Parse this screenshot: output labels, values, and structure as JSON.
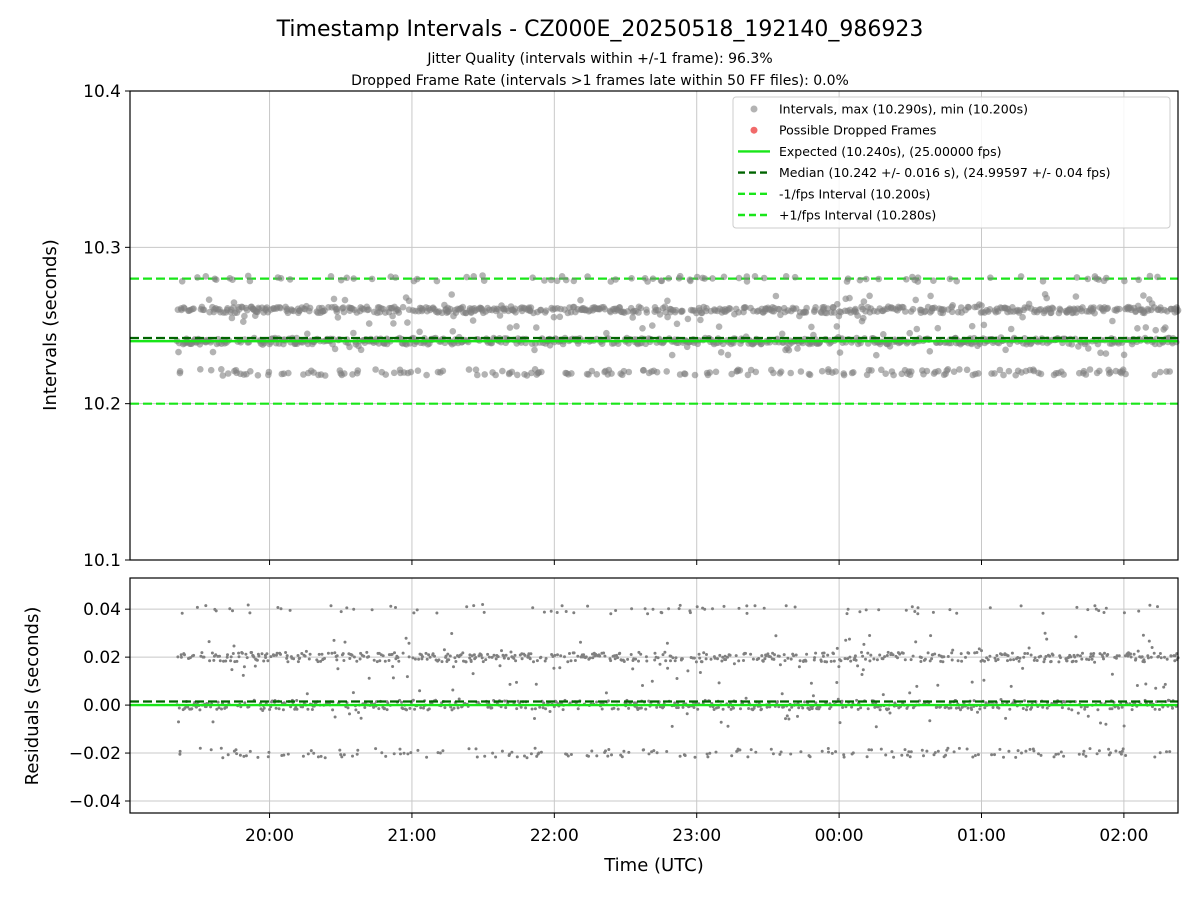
{
  "header": {
    "title": "Timestamp Intervals - CZ000E_20250518_192140_986923",
    "subtitle_1": "Jitter Quality (intervals within +/-1 frame): 96.3%",
    "subtitle_2": "Dropped Frame Rate (intervals >1 frames late within 50 FF files): 0.0%"
  },
  "colors": {
    "points": "#808080",
    "dropped": "#f05a5a",
    "expected": "#19e619",
    "median": "#006400",
    "limits": "#19e619",
    "grid": "#c8c8c8"
  },
  "chart_data": [
    {
      "type": "scatter",
      "panel": "intervals",
      "ylabel": "Intervals (seconds)",
      "ylim": [
        10.1,
        10.4
      ],
      "yticks": [
        "10.1",
        "10.2",
        "10.3",
        "10.4"
      ],
      "ytick_values": [
        10.1,
        10.2,
        10.3,
        10.4
      ],
      "grid": true,
      "legend_position": "top-right",
      "legend": [
        "Intervals, max (10.290s), min (10.200s)",
        "Possible Dropped Frames",
        "Expected (10.240s), (25.00000 fps)",
        "Median (10.242 +/- 0.016 s), (24.99597 +/- 0.04 fps)",
        "-1/fps Interval (10.200s)",
        "+1/fps Interval (10.280s)"
      ],
      "x_range_hours": [
        19.02,
        26.38
      ],
      "data_x_range_hours": [
        19.35,
        26.38
      ],
      "levels": [
        {
          "value": 10.22,
          "spread": 0.002,
          "fraction": 0.12
        },
        {
          "value": 10.24,
          "spread": 0.002,
          "fraction": 0.36
        },
        {
          "value": 10.26,
          "spread": 0.002,
          "fraction": 0.36
        },
        {
          "value": 10.28,
          "spread": 0.002,
          "fraction": 0.06
        },
        {
          "value": 10.25,
          "spread": 0.02,
          "fraction": 0.1
        }
      ],
      "max": 10.29,
      "min": 10.2,
      "dropped_frames": [],
      "lines": {
        "expected": 10.24,
        "median": 10.242,
        "minus_1_fps": 10.2,
        "plus_1_fps": 10.28
      }
    },
    {
      "type": "scatter",
      "panel": "residuals",
      "ylabel": "Residuals (seconds)",
      "xlabel": "Time (UTC)",
      "ylim": [
        -0.045,
        0.053
      ],
      "yticks": [
        "−0.04",
        "−0.02",
        "0.00",
        "0.02",
        "0.04"
      ],
      "ytick_values": [
        -0.04,
        -0.02,
        0.0,
        0.02,
        0.04
      ],
      "xticks": [
        "20:00",
        "21:00",
        "22:00",
        "23:00",
        "00:00",
        "01:00",
        "02:00"
      ],
      "xtick_values_hours": [
        20,
        21,
        22,
        23,
        24,
        25,
        26
      ],
      "grid": true,
      "levels": [
        {
          "value": -0.02,
          "spread": 0.002,
          "fraction": 0.12
        },
        {
          "value": 0.0,
          "spread": 0.002,
          "fraction": 0.36
        },
        {
          "value": 0.02,
          "spread": 0.002,
          "fraction": 0.36
        },
        {
          "value": 0.04,
          "spread": 0.002,
          "fraction": 0.06
        },
        {
          "value": 0.01,
          "spread": 0.02,
          "fraction": 0.1
        }
      ],
      "lines": {
        "expected": 0.0,
        "median": 0.0015
      }
    }
  ]
}
